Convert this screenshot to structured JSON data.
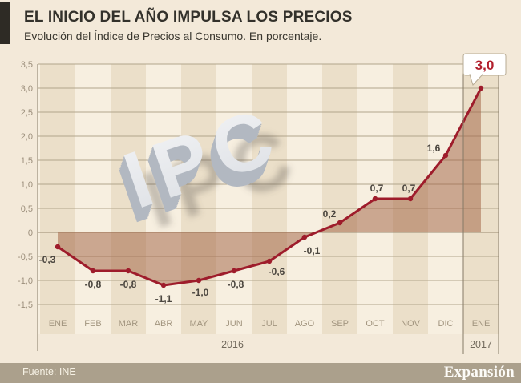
{
  "header": {
    "title": "EL INICIO DEL AÑO IMPULSA LOS PRECIOS",
    "subtitle": "Evolución del Índice de Precios al Consumo. En porcentaje."
  },
  "watermark": "IPC",
  "footer": {
    "source": "Fuente: INE",
    "brand": "Expansión"
  },
  "colors": {
    "background": "#f3e9d9",
    "band_light": "#f7efe0",
    "band_dark": "#ebdfc9",
    "grid": "#b2a58c",
    "zero_line": "#99896f",
    "axis_line": "#857a66",
    "line_red": "#9e1c2b",
    "area_fill": "rgba(160,96,63,0.5)",
    "value_label": "#4b463f",
    "tick_label": "#9c8f7c",
    "month_label": "#a2957f",
    "year_label": "#726a5d",
    "callout_text": "#b2202e",
    "callout_border": "#b7ab94",
    "footer_bar": "#aba08c",
    "header_block": "#2e2b25"
  },
  "chart_data": {
    "type": "line",
    "title": "EL INICIO DEL AÑO IMPULSA LOS PRECIOS",
    "subtitle": "Evolución del Índice de Precios al Consumo. En porcentaje.",
    "categories": [
      "ENE",
      "FEB",
      "MAR",
      "ABR",
      "MAY",
      "JUN",
      "JUL",
      "AGO",
      "SEP",
      "OCT",
      "NOV",
      "DIC",
      "ENE"
    ],
    "values": [
      -0.3,
      -0.8,
      -0.8,
      -1.1,
      -1.0,
      -0.8,
      -0.6,
      -0.1,
      0.2,
      0.7,
      0.7,
      1.6,
      3.0
    ],
    "value_labels": [
      "-0,3",
      "-0,8",
      "-0,8",
      "-1,1",
      "-1,0",
      "-0,8",
      "-0,6",
      "-0,1",
      "0,2",
      "0,7",
      "0,7",
      "1,6",
      "3,0"
    ],
    "highlight_last_label": "3,0",
    "ytick_labels": [
      "3,5",
      "3,0",
      "2,5",
      "2,0",
      "1,5",
      "1,0",
      "0,5",
      "0",
      "-0,5",
      "-1,0",
      "-1,5"
    ],
    "yticks": [
      3.5,
      3.0,
      2.5,
      2.0,
      1.5,
      1.0,
      0.5,
      0,
      -0.5,
      -1.0,
      -1.5
    ],
    "ylim": [
      -1.5,
      3.5
    ],
    "year_labels": [
      "2016",
      "2017"
    ],
    "xlabel": "",
    "ylabel": "",
    "grid": "horizontal",
    "legend": "none",
    "area_between_line_and_zero": true
  }
}
